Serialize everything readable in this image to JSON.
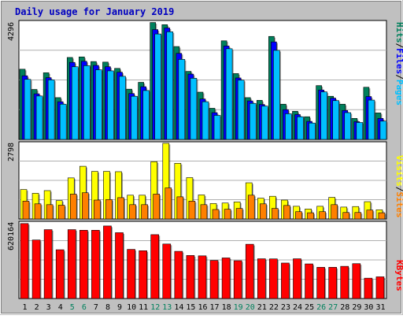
{
  "title": "Daily usage for January 2019",
  "colors": {
    "background": "#c0c0c0",
    "plot_background": "#ffffff",
    "title": "#0000c0",
    "hits": "#00805c",
    "files": "#0000ff",
    "pages": "#00c0ff",
    "visits": "#ffff00",
    "sites": "#ff8000",
    "kbytes": "#ff0000",
    "day_normal": "#000000",
    "day_weekend": "#00805c"
  },
  "legend": {
    "pages": "Pages",
    "files": "Files",
    "hits": "Hits",
    "sites": "Sites",
    "visits": "Visits",
    "kbytes": "KBytes",
    "sep": "/"
  },
  "chart_data": {
    "type": "bar",
    "title": "Daily usage for January 2019",
    "categories": [
      "1",
      "2",
      "3",
      "4",
      "5",
      "6",
      "7",
      "8",
      "9",
      "10",
      "11",
      "12",
      "13",
      "14",
      "15",
      "16",
      "17",
      "18",
      "19",
      "20",
      "21",
      "22",
      "23",
      "24",
      "25",
      "26",
      "27",
      "28",
      "29",
      "30",
      "31"
    ],
    "weekend_days": [
      "5",
      "6",
      "12",
      "13",
      "19",
      "20",
      "26",
      "27"
    ],
    "panels": [
      {
        "name": "hits-files-pages",
        "ymax": 4296,
        "ylabel": "4296",
        "series": [
          {
            "name": "Hits",
            "values": [
              2570,
              1830,
              2440,
              1530,
              3000,
              3020,
              2850,
              2830,
              2600,
              1840,
              2090,
              4280,
              4200,
              3400,
              2490,
              1730,
              1140,
              3610,
              2410,
              1530,
              1430,
              3770,
              1290,
              1030,
              830,
              1970,
              1580,
              1290,
              770,
              1910,
              970
            ]
          },
          {
            "name": "Files",
            "values": [
              2330,
              1670,
              2260,
              1380,
              2820,
              2860,
              2710,
              2660,
              2460,
              1680,
              1930,
              4020,
              4080,
              3150,
              2390,
              1480,
              980,
              3420,
              2250,
              1410,
              1280,
              3570,
              1090,
              910,
              660,
              1810,
              1510,
              1060,
              650,
              1570,
              770
            ]
          },
          {
            "name": "Pages",
            "values": [
              2200,
              1590,
              2180,
              1290,
              2660,
              2700,
              2550,
              2510,
              2310,
              1580,
              1790,
              3860,
              3940,
              2930,
              2240,
              1380,
              880,
              3320,
              2170,
              1320,
              1220,
              3260,
              940,
              830,
              600,
              1740,
              1420,
              980,
              620,
              1440,
              670
            ]
          }
        ]
      },
      {
        "name": "visits-sites",
        "ymax": 2798,
        "ylabel": "2798",
        "series": [
          {
            "name": "Visits",
            "values": [
              1090,
              950,
              1050,
              680,
              1520,
              1950,
              1760,
              1760,
              1750,
              880,
              880,
              2120,
              2800,
              2060,
              1530,
              890,
              570,
              590,
              630,
              1340,
              770,
              840,
              700,
              470,
              370,
              470,
              800,
              440,
              460,
              640,
              340
            ]
          },
          {
            "name": "Sites",
            "values": [
              660,
              560,
              530,
              510,
              920,
              970,
              700,
              720,
              790,
              530,
              530,
              920,
              1150,
              820,
              660,
              530,
              350,
              360,
              390,
              880,
              560,
              390,
              500,
              270,
              230,
              270,
              530,
              240,
              240,
              330,
              230
            ]
          }
        ]
      },
      {
        "name": "kbytes",
        "ymax": 620164,
        "ylabel": "620164",
        "series": [
          {
            "name": "KBytes",
            "values": [
              615000,
              480000,
              565000,
              400000,
              565000,
              560000,
              560000,
              595000,
              540000,
              403000,
              392000,
              524000,
              447000,
              387000,
              353000,
              350000,
              312000,
              333000,
              310000,
              445000,
              326000,
              325000,
              291000,
              326000,
              284000,
              256000,
              256000,
              264000,
              286000,
              167000,
              178000
            ]
          }
        ]
      }
    ]
  }
}
